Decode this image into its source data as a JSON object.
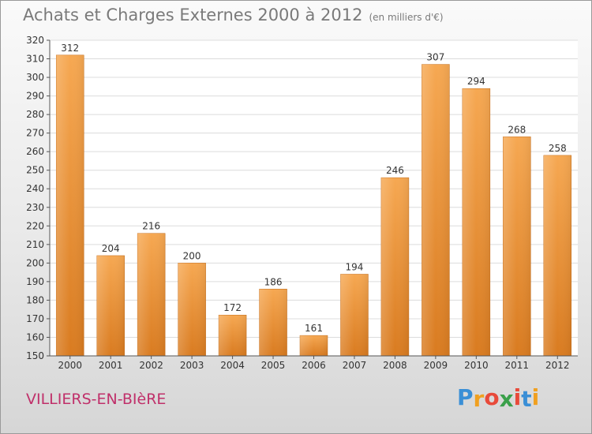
{
  "title": "Achats et Charges Externes 2000 à 2012",
  "unit": "(en milliers d'€)",
  "place": "VILLIERS-EN-BIèRE",
  "logo": {
    "letters": [
      "P",
      "r",
      "o",
      "x",
      "i",
      "t",
      "i"
    ],
    "colors": [
      "#3a8fd6",
      "#f0a020",
      "#e84a3a",
      "#3aa04a",
      "#e84a3a",
      "#3a8fd6",
      "#f0a020"
    ]
  },
  "colors": {
    "bar_top": "#f6a852",
    "bar_bottom": "#d97b20",
    "title": "#7a7a7a",
    "place": "#c0306a"
  },
  "chart_data": {
    "type": "bar",
    "categories": [
      "2000",
      "2001",
      "2002",
      "2003",
      "2004",
      "2005",
      "2006",
      "2007",
      "2008",
      "2009",
      "2010",
      "2011",
      "2012"
    ],
    "values": [
      312,
      204,
      216,
      200,
      172,
      186,
      161,
      194,
      246,
      307,
      294,
      268,
      258
    ],
    "ylim": [
      150,
      320
    ],
    "yticks": [
      150,
      160,
      170,
      180,
      190,
      200,
      210,
      220,
      230,
      240,
      250,
      260,
      270,
      280,
      290,
      300,
      310,
      320
    ],
    "grid": true
  }
}
